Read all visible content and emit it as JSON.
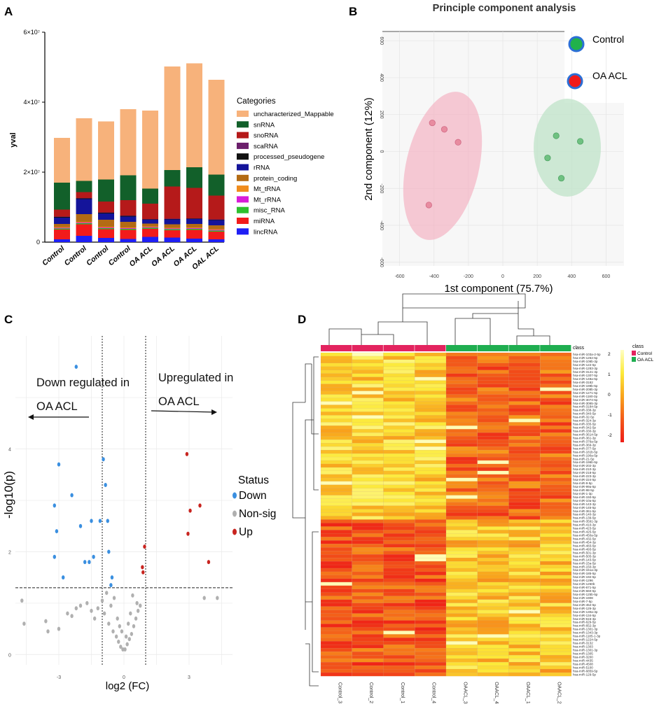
{
  "panel_labels": [
    "A",
    "B",
    "C",
    "D"
  ],
  "chart_data": [
    {
      "type": "bar",
      "stacked": true,
      "panel": "A",
      "title": "",
      "xlabel": "",
      "ylabel": "yval",
      "ylim": [
        0,
        60000000
      ],
      "yticks": [
        "0",
        "2×10⁷",
        "4×10⁷",
        "6×10⁷"
      ],
      "yticks_values": [
        0,
        20000000,
        40000000,
        60000000
      ],
      "categories": [
        "Control",
        "Control",
        "Control",
        "Control",
        "OA ACL",
        "OA ACL",
        "OA ACL",
        "OAL ACL"
      ],
      "legend_title": "Categories",
      "series": [
        {
          "name": "lincRNA",
          "color": "#1f1ff5",
          "values": [
            800000,
            1800000,
            1200000,
            900000,
            1500000,
            1300000,
            1000000,
            800000
          ]
        },
        {
          "name": "miRNA",
          "color": "#f21b1b",
          "values": [
            2800000,
            3300000,
            2500000,
            2600000,
            2300000,
            2100000,
            2500000,
            2200000
          ]
        },
        {
          "name": "misc_RNA",
          "color": "#2ec02e",
          "values": [
            300000,
            300000,
            300000,
            300000,
            300000,
            300000,
            300000,
            300000
          ]
        },
        {
          "name": "Mt_rRNA",
          "color": "#d81bd8",
          "values": [
            200000,
            200000,
            200000,
            200000,
            200000,
            200000,
            200000,
            200000
          ]
        },
        {
          "name": "Mt_tRNA",
          "color": "#f08c1c",
          "values": [
            200000,
            200000,
            200000,
            200000,
            200000,
            200000,
            200000,
            200000
          ]
        },
        {
          "name": "protein_coding",
          "color": "#b36b14",
          "values": [
            900000,
            2200000,
            2000000,
            1600000,
            800000,
            1000000,
            1000000,
            1100000
          ]
        },
        {
          "name": "rRNA",
          "color": "#14149a",
          "values": [
            1800000,
            4300000,
            1800000,
            1500000,
            1100000,
            1400000,
            1400000,
            1500000
          ]
        },
        {
          "name": "processed_pseudogene",
          "color": "#111111",
          "values": [
            200000,
            200000,
            200000,
            200000,
            100000,
            100000,
            100000,
            100000
          ]
        },
        {
          "name": "scaRNA",
          "color": "#6b1f6b",
          "values": [
            100000,
            100000,
            100000,
            100000,
            100000,
            100000,
            100000,
            100000
          ]
        },
        {
          "name": "snoRNA",
          "color": "#b51a1a",
          "values": [
            2000000,
            1700000,
            3100000,
            4400000,
            4400000,
            9200000,
            8700000,
            6800000
          ]
        },
        {
          "name": "snRNA",
          "color": "#12602a",
          "values": [
            7700000,
            3200000,
            6300000,
            7100000,
            4300000,
            4700000,
            5900000,
            6000000
          ]
        },
        {
          "name": "uncharacterized_Mappable",
          "color": "#f7b27b",
          "values": [
            12800000,
            17900000,
            16600000,
            18900000,
            22300000,
            29600000,
            29700000,
            27100000
          ]
        }
      ]
    },
    {
      "type": "scatter",
      "panel": "B",
      "title": "Principle component analysis",
      "xlabel": "1st component (75.7%)",
      "ylabel": "2nd component (12%)",
      "xlim": [
        -700,
        700
      ],
      "ylim": [
        -620,
        650
      ],
      "xticks": [
        -600,
        -400,
        -200,
        0,
        200,
        400,
        600
      ],
      "yticks": [
        -600,
        -400,
        -200,
        0,
        200,
        400,
        600
      ],
      "series": [
        {
          "name": "Control",
          "color": "#e88ca0",
          "points": [
            [
              -410,
              155
            ],
            [
              -340,
              120
            ],
            [
              -260,
              50
            ],
            [
              -430,
              -290
            ]
          ]
        },
        {
          "name": "OA ACL",
          "color": "#6fc181",
          "points": [
            [
              310,
              85
            ],
            [
              450,
              55
            ],
            [
              260,
              -35
            ],
            [
              340,
              -145
            ]
          ]
        }
      ],
      "legend_marker_colors": {
        "Control": "#21b24b",
        "OA ACL": "#f11a1a",
        "ring": "#2b6fd6"
      }
    },
    {
      "type": "scatter",
      "panel": "C",
      "title": "",
      "xlabel": "log2 (FC)",
      "ylabel": "-log10(p)",
      "xlim": [
        -5,
        5
      ],
      "ylim": [
        -0.2,
        6.2
      ],
      "xticks": [
        "-3",
        "0",
        "3"
      ],
      "xticks_values": [
        -3,
        0,
        3
      ],
      "yticks": [
        "0",
        "2",
        "4"
      ],
      "yticks_values": [
        0,
        2,
        4
      ],
      "thresholds": {
        "x": [
          -1,
          1
        ],
        "y": 1.3
      },
      "annotations": {
        "down": "Down regulated in OA ACL",
        "up": "Upregulated in OA ACL"
      },
      "legend_title": "Status",
      "series": [
        {
          "name": "Down",
          "color": "#3a8fe0",
          "points": [
            [
              -2.2,
              5.6
            ],
            [
              -3.0,
              3.7
            ],
            [
              -0.95,
              3.8
            ],
            [
              -0.85,
              3.3
            ],
            [
              -2.4,
              3.1
            ],
            [
              -3.2,
              2.9
            ],
            [
              -3.1,
              2.4
            ],
            [
              -0.75,
              2.6
            ],
            [
              -1.1,
              2.6
            ],
            [
              -1.5,
              2.6
            ],
            [
              -2.0,
              2.5
            ],
            [
              -0.7,
              2.0
            ],
            [
              -3.2,
              1.9
            ],
            [
              -1.4,
              1.9
            ],
            [
              -1.6,
              1.8
            ],
            [
              -1.8,
              1.8
            ],
            [
              -2.8,
              1.5
            ],
            [
              -0.55,
              1.5
            ],
            [
              -0.6,
              1.35
            ]
          ]
        },
        {
          "name": "Non-sig",
          "color": "#b0b0b0",
          "points": [
            [
              -4.7,
              1.05
            ],
            [
              -4.6,
              0.6
            ],
            [
              -3.6,
              0.65
            ],
            [
              -3.5,
              0.45
            ],
            [
              -3.0,
              0.5
            ],
            [
              -2.6,
              0.8
            ],
            [
              -2.2,
              0.9
            ],
            [
              -2.0,
              0.95
            ],
            [
              -1.7,
              1.0
            ],
            [
              -1.5,
              0.85
            ],
            [
              -1.2,
              0.9
            ],
            [
              -0.9,
              0.8
            ],
            [
              -0.7,
              0.6
            ],
            [
              -0.5,
              0.45
            ],
            [
              -0.35,
              0.35
            ],
            [
              -0.25,
              0.25
            ],
            [
              -0.15,
              0.15
            ],
            [
              -0.05,
              0.1
            ],
            [
              0.05,
              0.1
            ],
            [
              0.15,
              0.2
            ],
            [
              0.25,
              0.3
            ],
            [
              0.35,
              0.4
            ],
            [
              0.45,
              0.55
            ],
            [
              0.55,
              0.7
            ],
            [
              0.65,
              0.85
            ],
            [
              0.75,
              0.95
            ],
            [
              -0.45,
              1.1
            ],
            [
              -0.8,
              1.2
            ],
            [
              0.4,
              1.15
            ],
            [
              0.6,
              1.0
            ],
            [
              -1.0,
              1.05
            ],
            [
              -0.3,
              0.7
            ],
            [
              0.2,
              0.6
            ],
            [
              -0.1,
              0.45
            ],
            [
              0.1,
              0.35
            ],
            [
              -0.2,
              0.55
            ],
            [
              0.3,
              0.8
            ],
            [
              -0.6,
              0.95
            ],
            [
              -1.35,
              0.7
            ],
            [
              -2.4,
              0.75
            ],
            [
              3.7,
              1.1
            ],
            [
              4.3,
              1.1
            ]
          ]
        },
        {
          "name": "Up",
          "color": "#c8241f",
          "points": [
            [
              2.9,
              3.9
            ],
            [
              3.5,
              2.9
            ],
            [
              3.05,
              2.8
            ],
            [
              2.95,
              2.35
            ],
            [
              0.95,
              2.1
            ],
            [
              0.85,
              1.7
            ],
            [
              0.88,
              1.6
            ],
            [
              3.9,
              1.8
            ]
          ]
        }
      ]
    },
    {
      "type": "heatmap",
      "panel": "D",
      "columns": [
        "Control_3",
        "Control_2",
        "Control_1",
        "Control_4",
        "OAACL_3",
        "OAACL_4",
        "OAACL_1",
        "OAACL_2"
      ],
      "column_classes": [
        "Control",
        "Control",
        "Control",
        "Control",
        "OA ACL",
        "OA ACL",
        "OA ACL",
        "OA ACL"
      ],
      "class_colors": {
        "Control": "#e3245f",
        "OA ACL": "#1fae50"
      },
      "class_label": "class",
      "legend_title": "class",
      "scale_ticks": [
        "2",
        "1",
        "0",
        "-1",
        "-2"
      ],
      "scale_colors": [
        "#ffffc4",
        "#fcea3a",
        "#f9a51c",
        "#f35a1a",
        "#ef1d17"
      ],
      "rows": [
        "hsa-miR-103a-2-5p",
        "hsa-miR-1264-5p",
        "hsa-miR-106b-3p",
        "hsa-miR-122-5p",
        "hsa-miR-1283-3p",
        "hsa-miR-3121-3p",
        "hsa-miR-1307-5p",
        "hsa-miR-148a-5p",
        "hsa-miR-3182",
        "hsa-miR-199b-5p",
        "hsa-miR-208b-3p",
        "hsa-miR-1271-5p",
        "hsa-miR-1180-3p",
        "hsa-miR-3074-5p",
        "hsa-miR-3065-3p",
        "hsa-miR-3184-5p",
        "hsa-miR-338-3p",
        "hsa-miR-340-5p",
        "hsa-miR-32-5p",
        "hsa-miR-324-3p",
        "hsa-miR-335-5p",
        "hsa-miR-342-5p",
        "hsa-miR-330-3p",
        "hsa-miR-3614-5p",
        "hsa-miR-361-3p",
        "hsa-miR-376a-5p",
        "hsa-miR-369-3p",
        "hsa-miR-377-5p",
        "hsa-miR-181b-5p",
        "hsa-miR-190a-5p",
        "hsa-miR-21-5p",
        "hsa-miR-196b-5p",
        "hsa-miR-202-3p",
        "hsa-miR-210-3p",
        "hsa-miR-218-5p",
        "hsa-miR-223-3p",
        "hsa-miR-224-5p",
        "hsa-miR-9-5p",
        "hsa-miR-99a-5p",
        "hsa-miR-98-5p",
        "hsa-miR-1-3p",
        "hsa-miR-150-5p",
        "hsa-miR-10a-5p",
        "hsa-miR-143-3p",
        "hsa-miR-145-5p",
        "hsa-miR-361-5p",
        "hsa-miR-140-3p",
        "hsa-miR-139-5p",
        "hsa-miR-3591-3p",
        "hsa-miR-410-3p",
        "hsa-miR-423-5p",
        "hsa-miR-425-5p",
        "hsa-miR-450a-5p",
        "hsa-miR-432-5p",
        "hsa-miR-454-3p",
        "hsa-miR-483-5p",
        "hsa-miR-493-5p",
        "hsa-miR-501-3p",
        "hsa-miR-505-3p",
        "hsa-miR-143-5p",
        "hsa-miR-15a-5p",
        "hsa-miR-150-3p",
        "hsa-miR-151a-3p",
        "hsa-miR-185-5p",
        "hsa-miR-192-5p",
        "hsa-miR-1296",
        "hsa-miR-1260b",
        "hsa-miR-671-5p",
        "hsa-miR-660-5p",
        "hsa-miR-125b-5p",
        "hsa-miR-1908",
        "hsa-miR-7-5p",
        "hsa-miR-452-5p",
        "hsa-miR-126-3p",
        "hsa-miR-130a-3p",
        "hsa-miR-134-5p",
        "hsa-miR-615-3p",
        "hsa-miR-629-5p",
        "hsa-miR-652-3p",
        "hsa-miR-1301-3p",
        "hsa-miR-1343-3p",
        "hsa-miR-1185-1-3p",
        "hsa-miR-1224-5p",
        "hsa-miR-3132",
        "hsa-miR-1303",
        "hsa-miR-1301-3p",
        "hsa-miR-1305",
        "hsa-miR-3200",
        "hsa-miR-4435",
        "hsa-miR-4508",
        "hsa-miR-5100",
        "hsa-miR-6859-5p",
        "hsa-miR-129-5p"
      ]
    }
  ]
}
